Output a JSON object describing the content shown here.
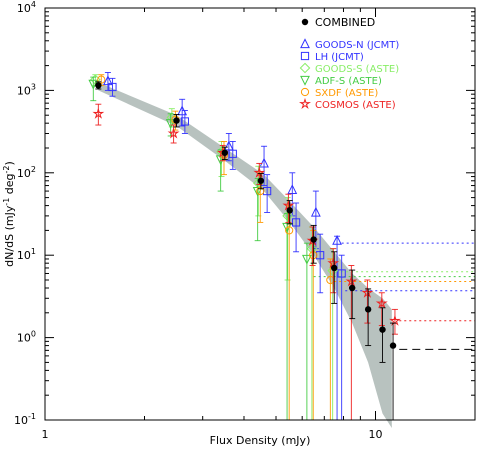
{
  "chart_data": {
    "type": "scatter",
    "xlabel": "Flux Density (mJy)",
    "ylabel": "dN/dS (mJy",
    "ylabel_exp1": "-1",
    "ylabel_mid": " deg",
    "ylabel_exp2": "-2",
    "ylabel_end": ")",
    "xscale": "log",
    "yscale": "log",
    "xlim": [
      1,
      20
    ],
    "ylim": [
      0.1,
      10000
    ],
    "xticks": [
      {
        "value": 1,
        "label": "1"
      },
      {
        "value": 10,
        "label": "10"
      }
    ],
    "yticks": [
      {
        "value": 0.1,
        "base": "10",
        "exp": "-1"
      },
      {
        "value": 1,
        "base": "10",
        "exp": "0"
      },
      {
        "value": 10,
        "base": "10",
        "exp": "1"
      },
      {
        "value": 100,
        "base": "10",
        "exp": "2"
      },
      {
        "value": 1000,
        "base": "10",
        "exp": "3"
      },
      {
        "value": 10000,
        "base": "10",
        "exp": "4"
      }
    ],
    "grid": false,
    "legend_position": "top-right",
    "band": {
      "color": "#b8c2bf",
      "x": [
        1.45,
        2.5,
        3.5,
        4.6,
        5.5,
        6.5,
        7.5,
        8.5,
        9.5,
        10.5,
        11.2
      ],
      "lower": [
        1000,
        370,
        140,
        60,
        25,
        10,
        4,
        1.5,
        0.5,
        0.12,
        0.08
      ],
      "upper": [
        1250,
        500,
        200,
        95,
        45,
        22,
        11,
        6,
        4,
        3,
        2.2
      ]
    },
    "series": [
      {
        "name": "COMBINED",
        "marker": "dot",
        "color": "#000000",
        "points": [
          {
            "x": 1.45,
            "y": 1150,
            "lo": 1040,
            "hi": 1270
          },
          {
            "x": 2.5,
            "y": 430,
            "lo": 360,
            "hi": 510
          },
          {
            "x": 3.5,
            "y": 175,
            "lo": 145,
            "hi": 205
          },
          {
            "x": 4.5,
            "y": 80,
            "lo": 64,
            "hi": 98
          },
          {
            "x": 5.5,
            "y": 35,
            "lo": 24,
            "hi": 46
          },
          {
            "x": 6.5,
            "y": 15.5,
            "lo": 8,
            "hi": 23
          },
          {
            "x": 7.5,
            "y": 7,
            "lo": 2.6,
            "hi": 11
          },
          {
            "x": 8.5,
            "y": 4,
            "lo": 1.7,
            "hi": 6.6
          },
          {
            "x": 9.5,
            "y": 2.2,
            "lo": 0.8,
            "hi": 3.9
          },
          {
            "x": 10.5,
            "y": 1.25,
            "lo": 0.5,
            "hi": 2.3
          },
          {
            "x": 11.3,
            "y": 0.8,
            "lo": 0.1,
            "hi": 1.5
          }
        ],
        "limit": {
          "y": 0.72,
          "from": 11.8,
          "dash": "8,5"
        }
      },
      {
        "name": "GOODS-N (JCMT)",
        "marker": "triangle-up",
        "color": "#3333ff",
        "points": [
          {
            "x": 1.55,
            "y": 1300,
            "lo": 1000,
            "hi": 1650
          },
          {
            "x": 2.6,
            "y": 560,
            "lo": 370,
            "hi": 780
          },
          {
            "x": 3.6,
            "y": 210,
            "lo": 140,
            "hi": 300
          },
          {
            "x": 4.6,
            "y": 130,
            "lo": 70,
            "hi": 210
          },
          {
            "x": 5.6,
            "y": 62,
            "lo": 30,
            "hi": 100
          },
          {
            "x": 6.6,
            "y": 33,
            "lo": 12,
            "hi": 60
          },
          {
            "x": 7.65,
            "y": 15,
            "lo": 0.1,
            "hi": 17
          }
        ],
        "limit": {
          "y": 14,
          "from": 7.9,
          "dash": "2,3"
        }
      },
      {
        "name": "LH (JCMT)",
        "marker": "square",
        "color": "#3333ff",
        "points": [
          {
            "x": 1.6,
            "y": 1100,
            "lo": 850,
            "hi": 1400
          },
          {
            "x": 2.65,
            "y": 420,
            "lo": 300,
            "hi": 570
          },
          {
            "x": 3.7,
            "y": 170,
            "lo": 110,
            "hi": 240
          },
          {
            "x": 4.7,
            "y": 60,
            "lo": 33,
            "hi": 95
          },
          {
            "x": 5.75,
            "y": 25,
            "lo": 11,
            "hi": 43
          },
          {
            "x": 6.8,
            "y": 10,
            "lo": 3.5,
            "hi": 18
          },
          {
            "x": 7.9,
            "y": 6,
            "lo": 0.1,
            "hi": 10
          }
        ],
        "limit": {
          "y": 3.7,
          "from": 8.1,
          "dash": "2,3"
        }
      },
      {
        "name": "GOODS-S (ASTE)",
        "marker": "diamond",
        "color": "#88ee66",
        "points": [
          {
            "x": 1.42,
            "y": 1350,
            "lo": 1150,
            "hi": 1550
          },
          {
            "x": 2.42,
            "y": 470,
            "lo": 360,
            "hi": 600
          },
          {
            "x": 3.42,
            "y": 180,
            "lo": 90,
            "hi": 240
          },
          {
            "x": 4.42,
            "y": 75,
            "lo": 30,
            "hi": 120
          },
          {
            "x": 5.42,
            "y": 30,
            "lo": 5,
            "hi": 50
          },
          {
            "x": 6.42,
            "y": 12,
            "lo": 0.1,
            "hi": 22
          },
          {
            "x": 7.42,
            "y": 6.5,
            "lo": 0.1,
            "hi": 12
          }
        ],
        "limit": {
          "y": 6.3,
          "from": 7.6,
          "dash": "2,3"
        }
      },
      {
        "name": "ADF-S (ASTE)",
        "marker": "triangle-down",
        "color": "#44cc44",
        "points": [
          {
            "x": 1.4,
            "y": 1200,
            "lo": 750,
            "hi": 1450
          },
          {
            "x": 2.4,
            "y": 400,
            "lo": 280,
            "hi": 520
          },
          {
            "x": 3.4,
            "y": 145,
            "lo": 60,
            "hi": 190
          },
          {
            "x": 4.4,
            "y": 60,
            "lo": 15,
            "hi": 85
          },
          {
            "x": 5.4,
            "y": 22,
            "lo": 0.1,
            "hi": 32
          },
          {
            "x": 6.2,
            "y": 9,
            "lo": 0.1,
            "hi": 14
          }
        ],
        "limit": {
          "y": 5.5,
          "from": 6.5,
          "dash": "2,3"
        }
      },
      {
        "name": "SXDF (ASTE)",
        "marker": "circle",
        "color": "#ff9900",
        "points": [
          {
            "x": 1.48,
            "y": 1350,
            "lo": 1150,
            "hi": 1550
          },
          {
            "x": 2.48,
            "y": 440,
            "lo": 330,
            "hi": 560
          },
          {
            "x": 3.48,
            "y": 165,
            "lo": 95,
            "hi": 240
          },
          {
            "x": 4.48,
            "y": 60,
            "lo": 25,
            "hi": 100
          },
          {
            "x": 5.48,
            "y": 20,
            "lo": 0.1,
            "hi": 40
          },
          {
            "x": 6.48,
            "y": 10,
            "lo": 0.1,
            "hi": 20
          },
          {
            "x": 7.3,
            "y": 5,
            "lo": 0.1,
            "hi": 9
          }
        ],
        "limit": {
          "y": 4.8,
          "from": 7.5,
          "dash": "2,3"
        }
      },
      {
        "name": "COSMOS (ASTE)",
        "marker": "star",
        "color": "#ee2222",
        "points": [
          {
            "x": 1.45,
            "y": 520,
            "lo": 380,
            "hi": 680
          },
          {
            "x": 2.45,
            "y": 300,
            "lo": 230,
            "hi": 380
          },
          {
            "x": 3.45,
            "y": 175,
            "lo": 140,
            "hi": 215
          },
          {
            "x": 4.45,
            "y": 100,
            "lo": 72,
            "hi": 130
          },
          {
            "x": 5.45,
            "y": 40,
            "lo": 25,
            "hi": 55
          },
          {
            "x": 6.45,
            "y": 15,
            "lo": 7.5,
            "hi": 22
          },
          {
            "x": 7.45,
            "y": 8,
            "lo": 3.5,
            "hi": 12
          },
          {
            "x": 8.45,
            "y": 4.8,
            "lo": 0.1,
            "hi": 7.5
          },
          {
            "x": 9.45,
            "y": 3.5,
            "lo": 1.5,
            "hi": 5
          },
          {
            "x": 10.45,
            "y": 2.6,
            "lo": 1.4,
            "hi": 3.5
          },
          {
            "x": 11.45,
            "y": 1.6,
            "lo": 1.1,
            "hi": 2.2
          }
        ],
        "limit": {
          "y": 1.6,
          "from": 11.8,
          "dash": "2,3"
        }
      }
    ]
  }
}
